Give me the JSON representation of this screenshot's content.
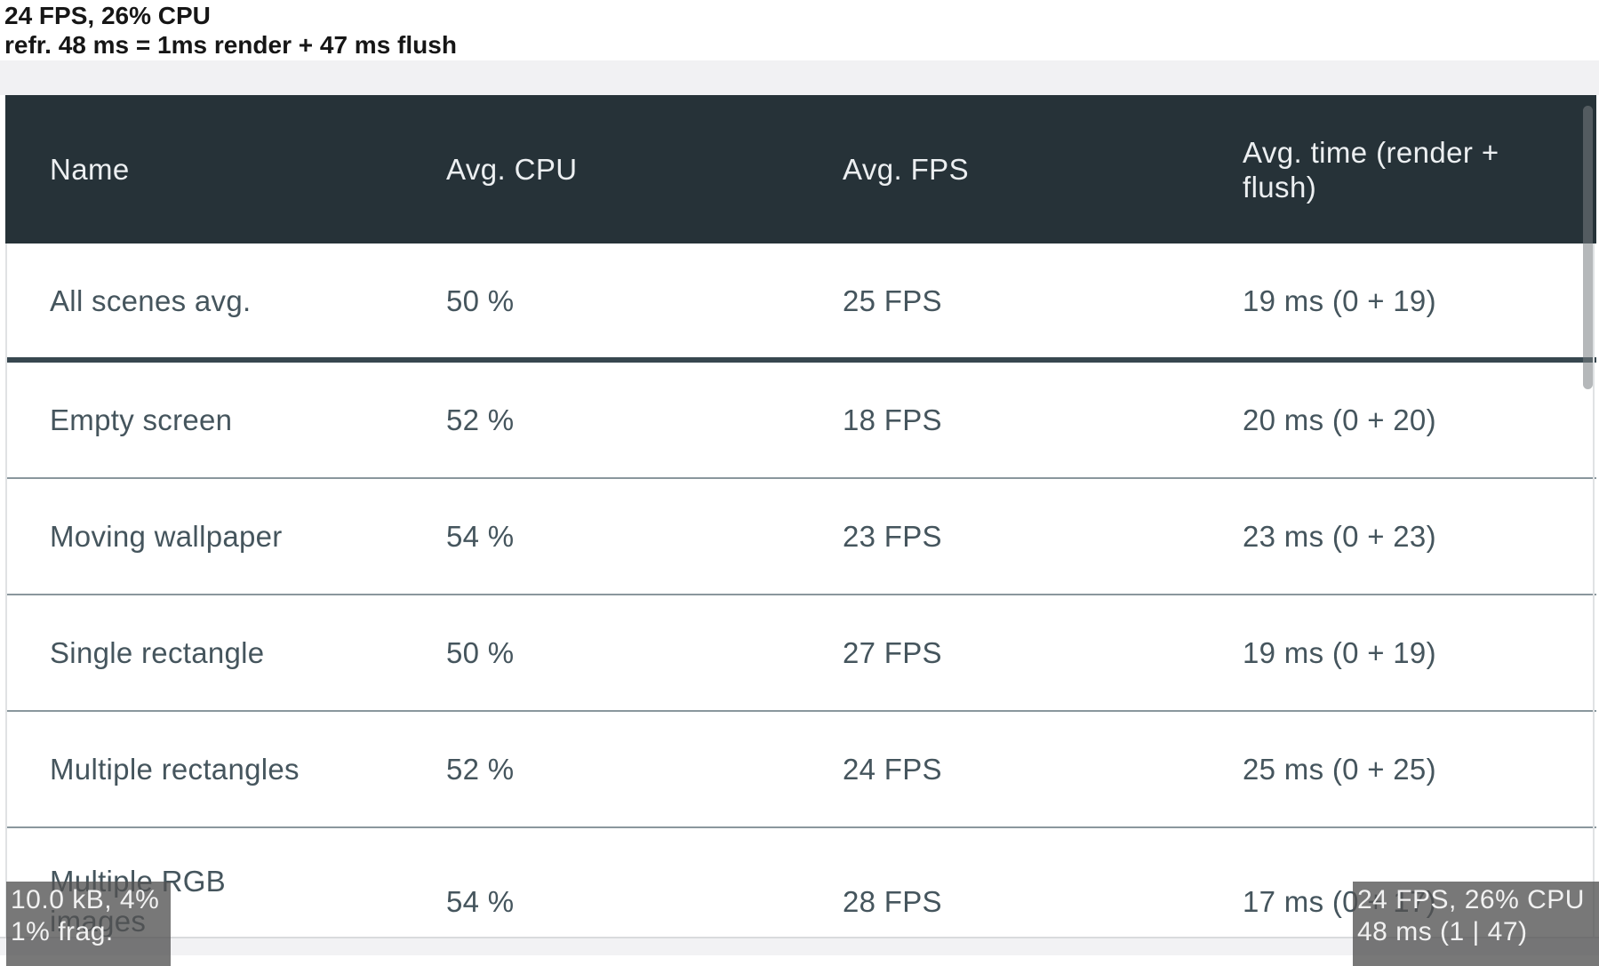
{
  "top_debug": {
    "line1": "24 FPS, 26% CPU",
    "line2": "refr. 48 ms = 1ms render + 47 ms flush"
  },
  "table": {
    "columns": [
      "Name",
      "Avg. CPU",
      "Avg. FPS",
      "Avg. time (render +\nflush)"
    ],
    "rows": [
      {
        "name": "All scenes avg.",
        "cpu": "50 %",
        "fps": "25 FPS",
        "time": "19 ms (0 + 19)"
      },
      {
        "name": "Empty screen",
        "cpu": "52 %",
        "fps": "18 FPS",
        "time": "20 ms (0 + 20)"
      },
      {
        "name": "Moving wallpaper",
        "cpu": "54 %",
        "fps": "23 FPS",
        "time": "23 ms (0 + 23)"
      },
      {
        "name": "Single rectangle",
        "cpu": "50 %",
        "fps": "27 FPS",
        "time": "19 ms (0 + 19)"
      },
      {
        "name": "Multiple rectangles",
        "cpu": "52 %",
        "fps": "24 FPS",
        "time": "25 ms (0 + 25)"
      },
      {
        "name": "Multiple RGB\nimages",
        "cpu": "54 %",
        "fps": "28 FPS",
        "time": "17 ms (0 + 17)"
      }
    ]
  },
  "hud_bottom_left": {
    "line1": "10.0 kB, 4%",
    "line2": "1% frag."
  },
  "hud_bottom_right": {
    "line1": "24 FPS, 26% CPU",
    "line2": "48 ms (1 | 47)"
  },
  "colors": {
    "header_bg": "#263238",
    "header_text": "#eceff1",
    "cell_text": "#45555d",
    "thick_separator": "#37474f",
    "thin_separator": "#8a979d",
    "page_band": "#f1f1f3",
    "hud_bg": "rgba(82,82,82,0.78)"
  }
}
